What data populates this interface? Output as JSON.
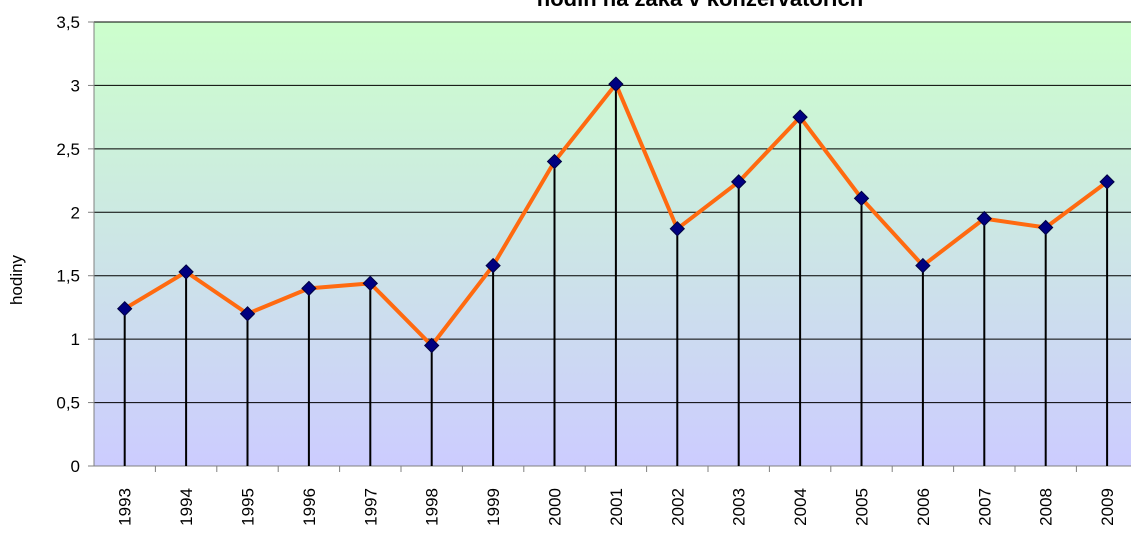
{
  "chart_data": {
    "type": "line",
    "title": "hodin na žáka v konzervatořích",
    "y_label": "hodiny",
    "categories": [
      "1993",
      "1994",
      "1995",
      "1996",
      "1997",
      "1998",
      "1999",
      "2000",
      "2001",
      "2002",
      "2003",
      "2004",
      "2005",
      "2006",
      "2007",
      "2008",
      "2009"
    ],
    "values": [
      1.24,
      1.53,
      1.2,
      1.4,
      1.44,
      0.95,
      1.58,
      2.4,
      3.01,
      1.87,
      2.24,
      2.75,
      2.11,
      1.58,
      1.95,
      1.88,
      2.24
    ],
    "color": "#ff6a10",
    "marker_color": "#000080",
    "ylim": [
      0,
      3.5
    ],
    "yticks": [
      0,
      {
        "value": 0.5,
        "label": "0,5"
      },
      1,
      {
        "value": 1.5,
        "label": "1,5"
      },
      2,
      {
        "value": 2.5,
        "label": "2,5"
      },
      3,
      {
        "value": 3.5,
        "label": "3,5"
      }
    ],
    "grid": true,
    "drop_lines": true
  }
}
